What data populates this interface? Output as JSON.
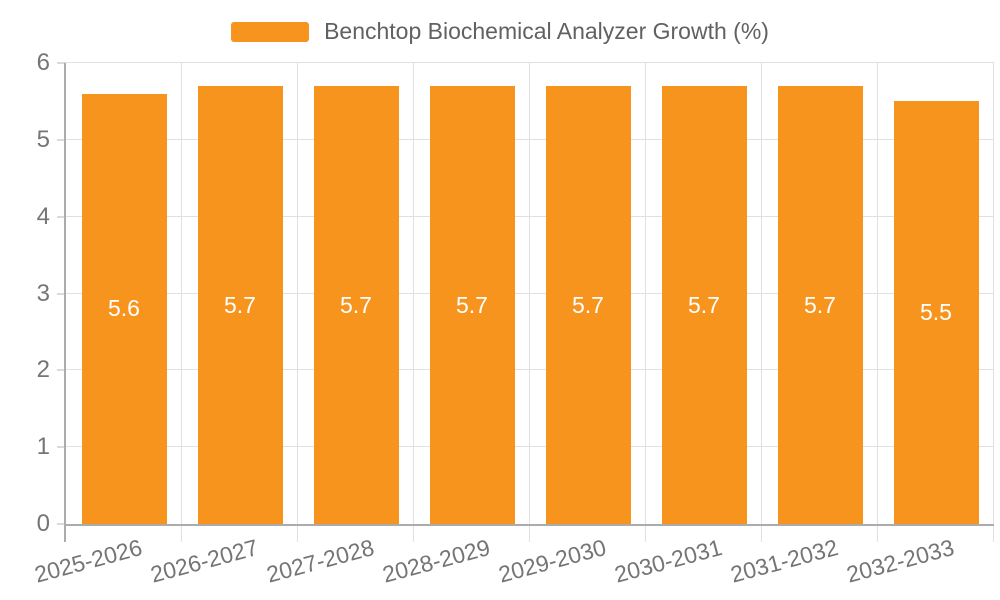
{
  "legend": {
    "label": "Benchtop Biochemical Analyzer Growth (%)"
  },
  "colors": {
    "background": "#FFFFFF",
    "bar": "#F7941E",
    "grid": "#E0E0E0",
    "axis": "#ACACAC",
    "tick": "#DBDBDB",
    "axis_label": "#757575",
    "legend_text": "#616161",
    "bar_label": "#FFFFFF"
  },
  "chart_data": {
    "type": "bar",
    "title": "Benchtop Biochemical Analyzer Growth (%)",
    "categories": [
      "2025-2026",
      "2026-2027",
      "2027-2028",
      "2028-2029",
      "2029-2030",
      "2030-2031",
      "2031-2032",
      "2032-2033"
    ],
    "values": [
      5.6,
      5.7,
      5.7,
      5.7,
      5.7,
      5.7,
      5.7,
      5.5
    ],
    "series": [
      {
        "name": "Benchtop Biochemical Analyzer Growth (%)",
        "values": [
          5.6,
          5.7,
          5.7,
          5.7,
          5.7,
          5.7,
          5.7,
          5.5
        ]
      }
    ],
    "xlabel": "",
    "ylabel": "",
    "ylim": [
      0,
      6
    ],
    "yticks": [
      0,
      1,
      2,
      3,
      4,
      5,
      6
    ],
    "grid": true,
    "legend_position": "top-center",
    "value_labels": "inside-middle",
    "value_label_format": "one-decimal",
    "x_label_rotation_deg": -15
  }
}
